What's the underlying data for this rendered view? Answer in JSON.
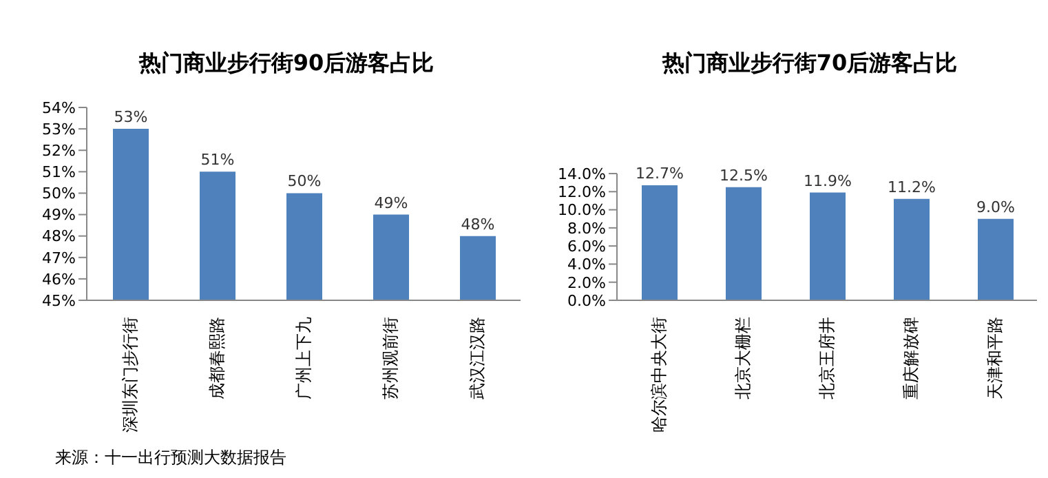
{
  "chart_data": [
    {
      "type": "bar",
      "title": "热门商业步行街90后游客占比",
      "categories": [
        "深圳东门步行街",
        "成都春熙路",
        "广州上下九",
        "苏州观前街",
        "武汉江汉路"
      ],
      "values": [
        53,
        51,
        50,
        49,
        48
      ],
      "value_labels": [
        "53%",
        "51%",
        "50%",
        "49%",
        "48%"
      ],
      "color": "#4f81bd",
      "ylim": [
        45,
        54
      ],
      "yticks": [
        {
          "value": 45,
          "label": "45%"
        },
        {
          "value": 46,
          "label": "46%"
        },
        {
          "value": 47,
          "label": "47%"
        },
        {
          "value": 48,
          "label": "48%"
        },
        {
          "value": 49,
          "label": "49%"
        },
        {
          "value": 50,
          "label": "50%"
        },
        {
          "value": 51,
          "label": "51%"
        },
        {
          "value": 52,
          "label": "52%"
        },
        {
          "value": 53,
          "label": "53%"
        },
        {
          "value": 54,
          "label": "54%"
        }
      ],
      "grid": false,
      "legend": false,
      "annotations": [
        "来源：十一出行预测大数据报告"
      ]
    },
    {
      "type": "bar",
      "title": "热门商业步行街70后游客占比",
      "categories": [
        "哈尔滨中央大街",
        "北京大栅栏",
        "北京王府井",
        "重庆解放碑",
        "天津和平路"
      ],
      "values": [
        12.7,
        12.5,
        11.9,
        11.2,
        9.0
      ],
      "value_labels": [
        "12.7%",
        "12.5%",
        "11.9%",
        "11.2%",
        "9.0%"
      ],
      "color": "#4f81bd",
      "ylim": [
        0,
        14
      ],
      "yticks": [
        {
          "value": 0,
          "label": "0.0%"
        },
        {
          "value": 2,
          "label": "2.0%"
        },
        {
          "value": 4,
          "label": "4.0%"
        },
        {
          "value": 6,
          "label": "6.0%"
        },
        {
          "value": 8,
          "label": "8.0%"
        },
        {
          "value": 10,
          "label": "10.0%"
        },
        {
          "value": 12,
          "label": "12.0%"
        },
        {
          "value": 14,
          "label": "14.0%"
        }
      ],
      "grid": false,
      "legend": false
    }
  ]
}
